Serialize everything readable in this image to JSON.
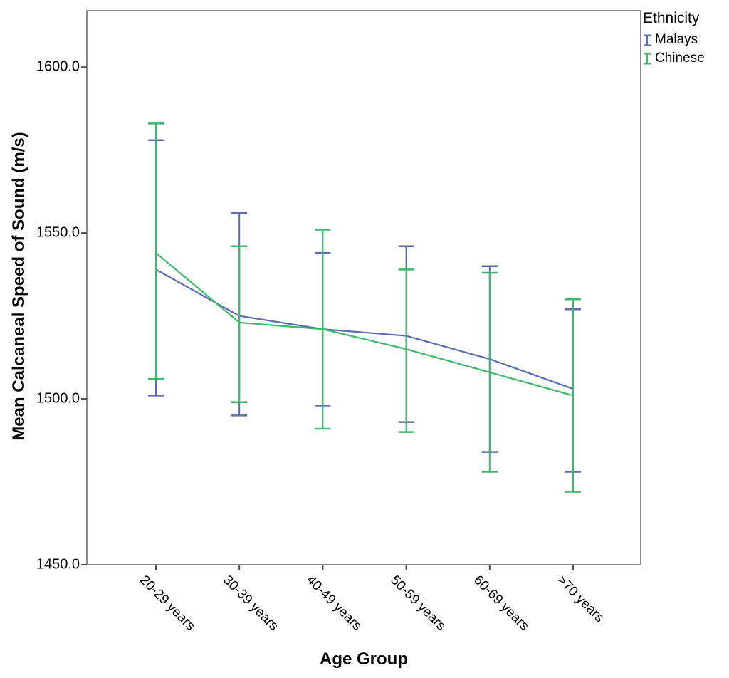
{
  "legend": {
    "title": "Ethnicity",
    "entries": [
      {
        "label": "Malays",
        "color": "#5A6DB3"
      },
      {
        "label": "Chinese",
        "color": "#3CB96C"
      }
    ]
  },
  "chart_data": {
    "type": "line",
    "title": "",
    "xlabel": "Age Group",
    "ylabel": "Mean Calcaneal Speed of Sound (m/s)",
    "categories": [
      "20-29 years",
      "30-39 years",
      "40-49 years",
      "50-59 years",
      "60-69 years",
      ">70 years"
    ],
    "ylim": [
      1450,
      1617
    ],
    "y_ticks": [
      1450,
      1500,
      1550,
      1600
    ],
    "y_tick_labels": [
      "1450.0",
      "1500.0",
      "1550.0",
      "1600.0"
    ],
    "grid": false,
    "error_bars": true,
    "legend_position": "top-right-outside",
    "frame_color": "#8a8a8a",
    "tick_color": "#4d4d4d",
    "series": [
      {
        "name": "Malays",
        "color": "#5A6DB3",
        "means": [
          1539,
          1525,
          1521,
          1519,
          1512,
          1503
        ],
        "upper": [
          1578,
          1556,
          1544,
          1546,
          1540,
          1527
        ],
        "lower": [
          1501,
          1495,
          1498,
          1493,
          1484,
          1478
        ]
      },
      {
        "name": "Chinese",
        "color": "#3CB96C",
        "means": [
          1544,
          1523,
          1521,
          1515,
          1508,
          1501
        ],
        "upper": [
          1583,
          1546,
          1551,
          1539,
          1538,
          1530
        ],
        "lower": [
          1506,
          1499,
          1491,
          1490,
          1478,
          1472
        ]
      }
    ]
  }
}
